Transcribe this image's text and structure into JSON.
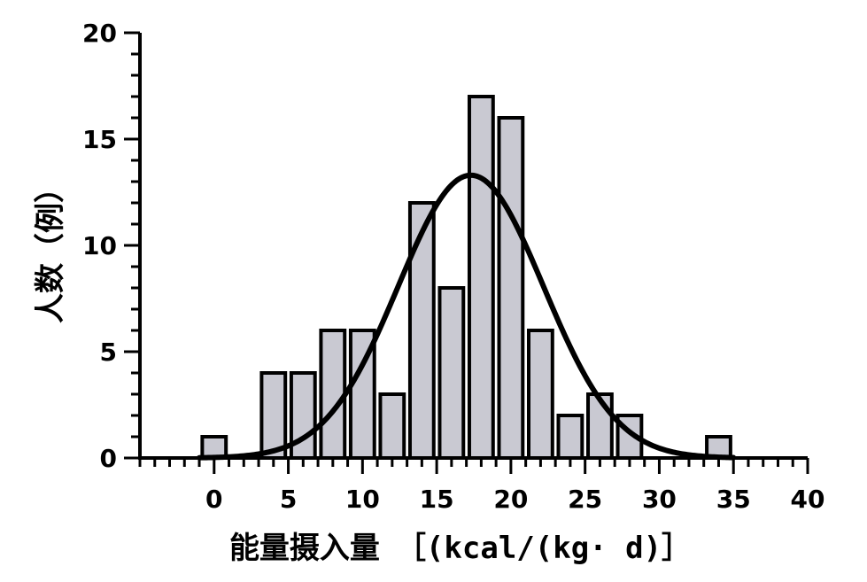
{
  "chart_data": {
    "type": "bar",
    "title": "",
    "xlabel": "能量摄入量",
    "xlabel_unit": "［(kcal/(kg· d)］",
    "ylabel": "人数（例）",
    "xlim": [
      -5,
      40
    ],
    "ylim": [
      0,
      20
    ],
    "xticks": [
      0,
      5,
      10,
      15,
      20,
      25,
      30,
      35,
      40
    ],
    "yticks": [
      0,
      5,
      10,
      15,
      20
    ],
    "bar_width": 1.6,
    "bins": [
      {
        "x": 0,
        "count": 1
      },
      {
        "x": 4,
        "count": 4
      },
      {
        "x": 6,
        "count": 4
      },
      {
        "x": 8,
        "count": 6
      },
      {
        "x": 10,
        "count": 6
      },
      {
        "x": 12,
        "count": 3
      },
      {
        "x": 14,
        "count": 12
      },
      {
        "x": 16,
        "count": 8
      },
      {
        "x": 18,
        "count": 17
      },
      {
        "x": 20,
        "count": 16
      },
      {
        "x": 22,
        "count": 6
      },
      {
        "x": 24,
        "count": 2
      },
      {
        "x": 26,
        "count": 3
      },
      {
        "x": 28,
        "count": 2
      },
      {
        "x": 34,
        "count": 1
      }
    ],
    "normal_fit": {
      "mean": 17.3,
      "sd": 4.9,
      "peak": 13.3
    },
    "bar_color": "#c9c9d2"
  }
}
